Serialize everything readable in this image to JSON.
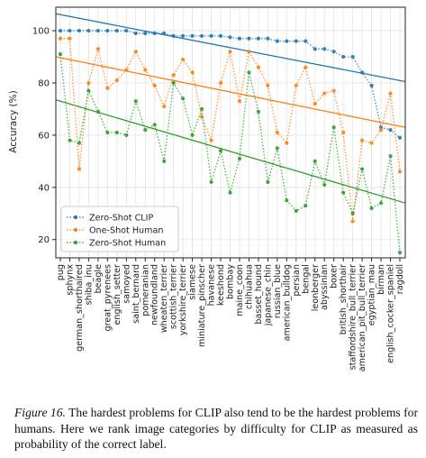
{
  "chart_data": {
    "type": "line",
    "title": "",
    "xlabel": "",
    "ylabel": "Accuracy (%)",
    "ylim": [
      13,
      109
    ],
    "y_ticks": [
      20,
      40,
      60,
      80,
      100
    ],
    "grid": true,
    "legend_position": "lower-left",
    "categories": [
      "pug",
      "sphynx",
      "german_shorthaired",
      "shiba_inu",
      "beagle",
      "great_pyrenees",
      "english_setter",
      "samoyed",
      "saint_bernard",
      "pomeranian",
      "newfoundland",
      "wheaten_terrier",
      "scottish_terrier",
      "yorkshire_terrier",
      "siamese",
      "miniature_pinscher",
      "havanese",
      "keeshond",
      "bombay",
      "maine_coon",
      "chihuahua",
      "basset_hound",
      "japanese_chin",
      "russian_blue",
      "american_bulldog",
      "persian",
      "bengal",
      "leonberger",
      "abyssinian",
      "boxer",
      "british_shorthair",
      "staffordshire_bull_terrier",
      "american_pit_bull_terrier",
      "egyptian_mau",
      "birman",
      "english_cocker_spaniel",
      "ragdoll"
    ],
    "series": [
      {
        "name": "Zero-Shot CLIP",
        "color": "#1f77b4",
        "style": "dotted-circle",
        "values": [
          100,
          100,
          100,
          100,
          100,
          100,
          100,
          100,
          99,
          99,
          99,
          99,
          98,
          98,
          98,
          98,
          98,
          98,
          97.5,
          97,
          97,
          97,
          97,
          96,
          96,
          96,
          96,
          93,
          93,
          92,
          90,
          90,
          84,
          79,
          63,
          62,
          59
        ],
        "trend": [
          106.5,
          80.5
        ]
      },
      {
        "name": "One-Shot Human",
        "color": "#ff7f0e",
        "style": "dotted-circle",
        "values": [
          97,
          97,
          47,
          80,
          93,
          78,
          81,
          85,
          92,
          85,
          79,
          71,
          83,
          89,
          84,
          67,
          58,
          80,
          92,
          73,
          92,
          86,
          79,
          61,
          57,
          79,
          86,
          72,
          76,
          77,
          61,
          27,
          58,
          57,
          62,
          76,
          46
        ],
        "trend": [
          90,
          63
        ]
      },
      {
        "name": "Zero-Shot Human",
        "color": "#2ca02c",
        "style": "dotted-circle",
        "values": [
          91,
          58,
          57,
          77,
          69,
          61,
          61,
          60,
          73,
          62,
          64,
          50,
          80,
          74,
          60,
          70,
          42,
          54,
          38,
          51,
          84,
          69,
          42,
          55,
          35,
          31,
          33,
          50,
          41,
          63,
          38,
          30,
          47,
          32,
          34,
          52,
          15
        ],
        "trend": [
          73.5,
          34
        ]
      }
    ]
  },
  "caption": {
    "label": "Figure 16.",
    "text": " The hardest problems for CLIP also tend to be the hardest problems for humans. Here we rank image categories by difficulty for CLIP as measured as probability of the correct label."
  }
}
